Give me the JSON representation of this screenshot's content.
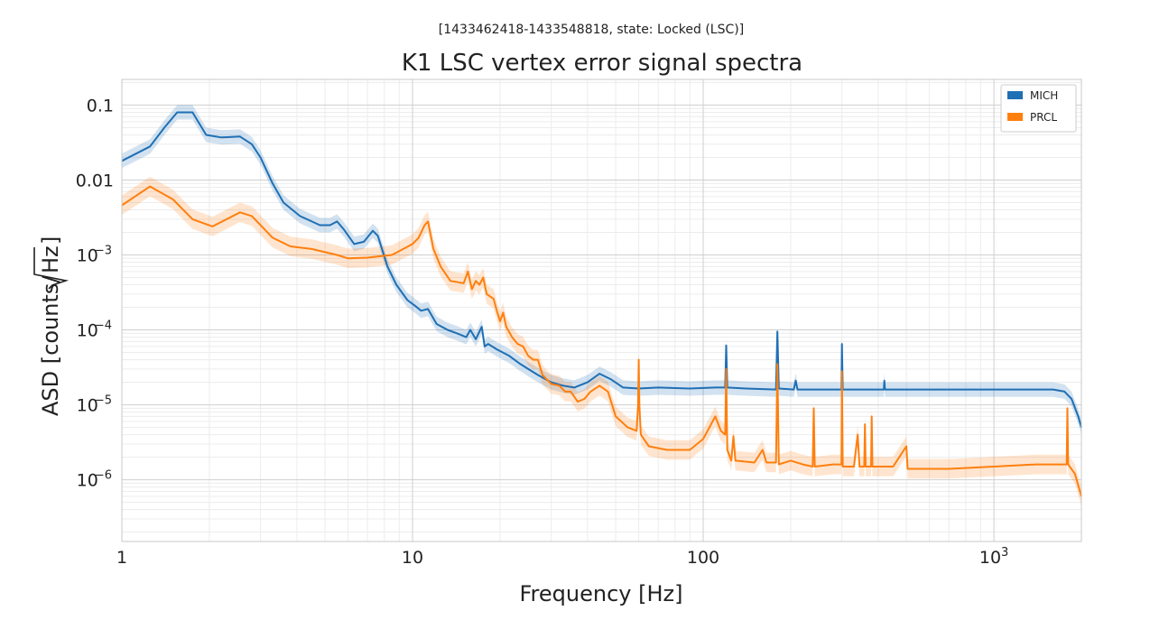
{
  "chart_data": {
    "type": "line",
    "subtitle": "[1433462418-1433548818, state: Locked (LSC)]",
    "title": "K1 LSC vertex error signal spectra",
    "xlabel": "Frequency [Hz]",
    "ylabel_main": "ASD [counts/",
    "ylabel_root": "Hz",
    "ylabel_close": "]",
    "x_scale": "log",
    "y_scale": "log",
    "xlim": [
      1,
      2000
    ],
    "ylim": [
      1.5e-07,
      0.22
    ],
    "grid": true,
    "legend_position": "top-right",
    "x_ticks": [
      {
        "value": 1,
        "label": "1"
      },
      {
        "value": 10,
        "label": "10"
      },
      {
        "value": 100,
        "label": "100"
      },
      {
        "value": 1000,
        "label": "10",
        "exp": "3"
      }
    ],
    "y_ticks": [
      {
        "value": 0.1,
        "label": "0.1"
      },
      {
        "value": 0.01,
        "label": "0.01"
      },
      {
        "value": 0.001,
        "label": "10",
        "exp": "−3"
      },
      {
        "value": 0.0001,
        "label": "10",
        "exp": "−4"
      },
      {
        "value": 1e-05,
        "label": "10",
        "exp": "−5"
      },
      {
        "value": 1e-06,
        "label": "10",
        "exp": "−6"
      }
    ],
    "series": [
      {
        "name": "MICH",
        "color": "#1f6fb4",
        "band": 1.25,
        "points": [
          [
            1.0,
            0.018
          ],
          [
            1.25,
            0.028
          ],
          [
            1.4,
            0.05
          ],
          [
            1.55,
            0.08
          ],
          [
            1.75,
            0.08
          ],
          [
            1.95,
            0.04
          ],
          [
            2.2,
            0.037
          ],
          [
            2.55,
            0.038
          ],
          [
            2.8,
            0.03
          ],
          [
            3.0,
            0.02
          ],
          [
            3.3,
            0.009
          ],
          [
            3.6,
            0.005
          ],
          [
            4.1,
            0.0033
          ],
          [
            4.8,
            0.0025
          ],
          [
            5.2,
            0.0025
          ],
          [
            5.5,
            0.0028
          ],
          [
            5.8,
            0.0022
          ],
          [
            6.3,
            0.0014
          ],
          [
            6.8,
            0.0015
          ],
          [
            7.3,
            0.0021
          ],
          [
            7.6,
            0.0018
          ],
          [
            8.2,
            0.0007
          ],
          [
            8.8,
            0.0004
          ],
          [
            9.6,
            0.00025
          ],
          [
            10.2,
            0.00021
          ],
          [
            10.7,
            0.00018
          ],
          [
            11.3,
            0.00019
          ],
          [
            12.1,
            0.00012
          ],
          [
            13.2,
            0.0001
          ],
          [
            14.2,
            9e-05
          ],
          [
            15.3,
            8e-05
          ],
          [
            15.8,
            0.0001
          ],
          [
            16.5,
            7.5e-05
          ],
          [
            17.3,
            0.00011
          ],
          [
            17.7,
            6e-05
          ],
          [
            18.2,
            6.5e-05
          ],
          [
            19.5,
            5.5e-05
          ],
          [
            21.5,
            4.5e-05
          ],
          [
            23.5,
            3.5e-05
          ],
          [
            25.0,
            3e-05
          ],
          [
            27.0,
            2.5e-05
          ],
          [
            30.0,
            2e-05
          ],
          [
            33.0,
            1.8e-05
          ],
          [
            36.0,
            1.7e-05
          ],
          [
            40.0,
            2e-05
          ],
          [
            44.0,
            2.6e-05
          ],
          [
            48.0,
            2.2e-05
          ],
          [
            53.0,
            1.7e-05
          ],
          [
            60.0,
            1.65e-05
          ],
          [
            70.0,
            1.7e-05
          ],
          [
            90.0,
            1.65e-05
          ],
          [
            110.0,
            1.7e-05
          ],
          [
            119.0,
            1.7e-05
          ],
          [
            120.0,
            6.2e-05
          ],
          [
            121.0,
            1.7e-05
          ],
          [
            140.0,
            1.65e-05
          ],
          [
            178.0,
            1.6e-05
          ],
          [
            180.0,
            9.5e-05
          ],
          [
            182.0,
            1.65e-05
          ],
          [
            205.0,
            1.6e-05
          ],
          [
            208.0,
            2.1e-05
          ],
          [
            211.0,
            1.6e-05
          ],
          [
            299.0,
            1.6e-05
          ],
          [
            300.0,
            6.5e-05
          ],
          [
            302.0,
            1.6e-05
          ],
          [
            418.0,
            1.6e-05
          ],
          [
            420.0,
            2.1e-05
          ],
          [
            422.0,
            1.6e-05
          ],
          [
            700.0,
            1.6e-05
          ],
          [
            1200.0,
            1.6e-05
          ],
          [
            1600.0,
            1.6e-05
          ],
          [
            1750.0,
            1.5e-05
          ],
          [
            1850.0,
            1.2e-05
          ],
          [
            1950.0,
            7e-06
          ],
          [
            2000.0,
            5e-06
          ]
        ]
      },
      {
        "name": "PRCL",
        "color": "#ff7f0e",
        "band": 1.35,
        "points": [
          [
            1.0,
            0.0046
          ],
          [
            1.25,
            0.0082
          ],
          [
            1.5,
            0.0055
          ],
          [
            1.75,
            0.003
          ],
          [
            2.05,
            0.0024
          ],
          [
            2.55,
            0.0037
          ],
          [
            2.8,
            0.0033
          ],
          [
            3.3,
            0.0017
          ],
          [
            3.8,
            0.0013
          ],
          [
            4.5,
            0.0012
          ],
          [
            5.5,
            0.001
          ],
          [
            6.0,
            0.0009
          ],
          [
            7.0,
            0.00092
          ],
          [
            8.5,
            0.001
          ],
          [
            10.0,
            0.0014
          ],
          [
            10.5,
            0.0017
          ],
          [
            11.0,
            0.0025
          ],
          [
            11.3,
            0.0028
          ],
          [
            11.8,
            0.0012
          ],
          [
            12.5,
            0.0007
          ],
          [
            13.5,
            0.00045
          ],
          [
            15.0,
            0.00042
          ],
          [
            15.5,
            0.0006
          ],
          [
            16.0,
            0.00035
          ],
          [
            16.5,
            0.00045
          ],
          [
            17.0,
            0.0004
          ],
          [
            17.5,
            0.0005
          ],
          [
            18.0,
            0.0003
          ],
          [
            19.0,
            0.00026
          ],
          [
            19.5,
            0.00018
          ],
          [
            20.0,
            0.00013
          ],
          [
            20.5,
            0.00017
          ],
          [
            21.0,
            0.00011
          ],
          [
            22.0,
            8e-05
          ],
          [
            23.0,
            6.5e-05
          ],
          [
            24.0,
            6e-05
          ],
          [
            25.0,
            4.5e-05
          ],
          [
            26.0,
            4e-05
          ],
          [
            27.0,
            4e-05
          ],
          [
            28.0,
            2.5e-05
          ],
          [
            30.0,
            1.9e-05
          ],
          [
            32.0,
            1.8e-05
          ],
          [
            33.5,
            1.5e-05
          ],
          [
            35.0,
            1.5e-05
          ],
          [
            37.0,
            1.1e-05
          ],
          [
            39.0,
            1.2e-05
          ],
          [
            41.0,
            1.5e-05
          ],
          [
            44.0,
            1.8e-05
          ],
          [
            47.0,
            1.5e-05
          ],
          [
            50.0,
            7e-06
          ],
          [
            55.0,
            5e-06
          ],
          [
            59.0,
            4.5e-06
          ],
          [
            59.7,
            1e-05
          ],
          [
            60.0,
            4e-05
          ],
          [
            60.3,
            1e-05
          ],
          [
            61.0,
            4e-06
          ],
          [
            65.0,
            2.8e-06
          ],
          [
            75.0,
            2.5e-06
          ],
          [
            90.0,
            2.5e-06
          ],
          [
            100.0,
            3.5e-06
          ],
          [
            105.0,
            5e-06
          ],
          [
            110.0,
            7e-06
          ],
          [
            115.0,
            4.5e-06
          ],
          [
            119.0,
            4e-06
          ],
          [
            120.0,
            3e-05
          ],
          [
            121.0,
            2.5e-06
          ],
          [
            125.0,
            1.8e-06
          ],
          [
            127.0,
            3.8e-06
          ],
          [
            129.0,
            1.8e-06
          ],
          [
            150.0,
            1.7e-06
          ],
          [
            160.0,
            2.5e-06
          ],
          [
            165.0,
            1.7e-06
          ],
          [
            178.0,
            1.7e-06
          ],
          [
            180.0,
            3.5e-05
          ],
          [
            182.0,
            1.6e-06
          ],
          [
            200.0,
            1.8e-06
          ],
          [
            220.0,
            1.6e-06
          ],
          [
            238.0,
            1.5e-06
          ],
          [
            240.0,
            9e-06
          ],
          [
            242.0,
            1.5e-06
          ],
          [
            280.0,
            1.6e-06
          ],
          [
            299.0,
            1.6e-06
          ],
          [
            300.0,
            2.8e-05
          ],
          [
            302.0,
            1.5e-06
          ],
          [
            330.0,
            1.5e-06
          ],
          [
            340.0,
            4e-06
          ],
          [
            345.0,
            1.5e-06
          ],
          [
            358.0,
            1.5e-06
          ],
          [
            360.0,
            5.5e-06
          ],
          [
            362.0,
            1.5e-06
          ],
          [
            378.0,
            1.5e-06
          ],
          [
            380.0,
            7e-06
          ],
          [
            382.0,
            1.5e-06
          ],
          [
            450.0,
            1.5e-06
          ],
          [
            500.0,
            2.8e-06
          ],
          [
            505.0,
            1.4e-06
          ],
          [
            700.0,
            1.4e-06
          ],
          [
            1000.0,
            1.5e-06
          ],
          [
            1400.0,
            1.6e-06
          ],
          [
            1700.0,
            1.6e-06
          ],
          [
            1780.0,
            1.6e-06
          ],
          [
            1790.0,
            9e-06
          ],
          [
            1800.0,
            1.6e-06
          ],
          [
            1900.0,
            1.2e-06
          ],
          [
            2000.0,
            6e-07
          ]
        ]
      }
    ]
  }
}
